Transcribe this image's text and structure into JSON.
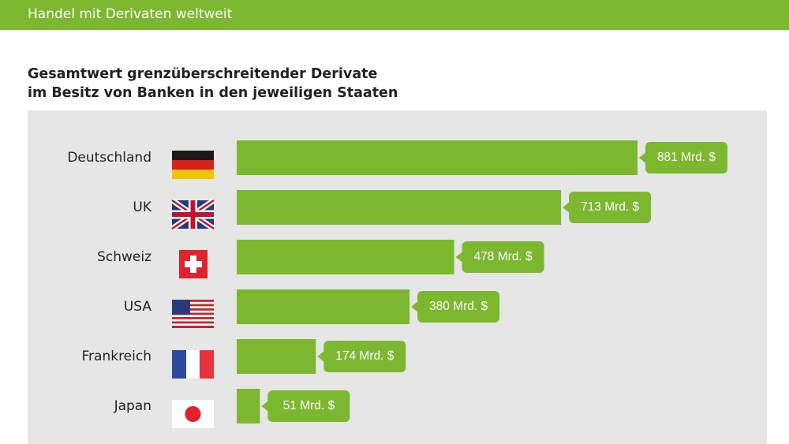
{
  "header": "Handel mit Derivaten weltweit",
  "chart_data": {
    "type": "bar",
    "orientation": "horizontal",
    "title": [
      "Gesamtwert grenzüberschreitender Derivate",
      "im Besitz von Banken in den jeweiligen Staaten"
    ],
    "categories": [
      "Deutschland",
      "UK",
      "Schweiz",
      "USA",
      "Frankreich",
      "Japan"
    ],
    "values": [
      881,
      713,
      478,
      380,
      174,
      51
    ],
    "value_labels": [
      "881 Mrd. $",
      "713 Mrd. $",
      "478 Mrd. $",
      "380 Mrd. $",
      "174 Mrd. $",
      "51 Mrd. $"
    ],
    "color": "#7cb82f"
  }
}
